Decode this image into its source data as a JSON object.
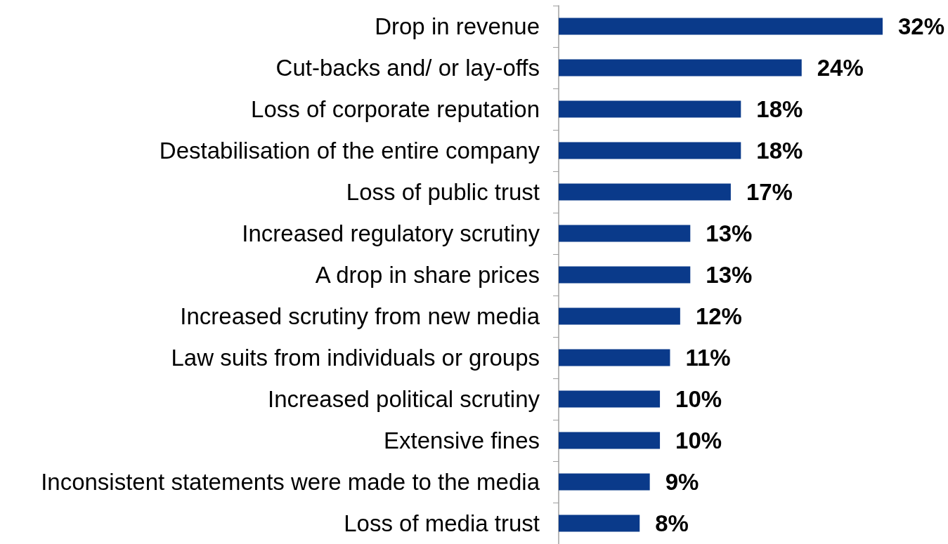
{
  "chart_data": {
    "type": "bar",
    "orientation": "horizontal",
    "categories": [
      "Drop in revenue",
      "Cut-backs and/ or lay-offs",
      "Loss of corporate reputation",
      "Destabilisation of the entire company",
      "Loss of public trust",
      "Increased regulatory scrutiny",
      "A drop in share prices",
      "Increased scrutiny from new media",
      "Law suits from individuals or groups",
      "Increased political scrutiny",
      "Extensive fines",
      "Inconsistent statements were made to the media",
      "Loss of media trust"
    ],
    "values": [
      32,
      24,
      18,
      18,
      17,
      13,
      13,
      12,
      11,
      10,
      10,
      9,
      8
    ],
    "value_labels": [
      "32%",
      "24%",
      "18%",
      "18%",
      "17%",
      "13%",
      "13%",
      "12%",
      "11%",
      "10%",
      "10%",
      "9%",
      "8%"
    ],
    "color": "#0a3a8a"
  }
}
